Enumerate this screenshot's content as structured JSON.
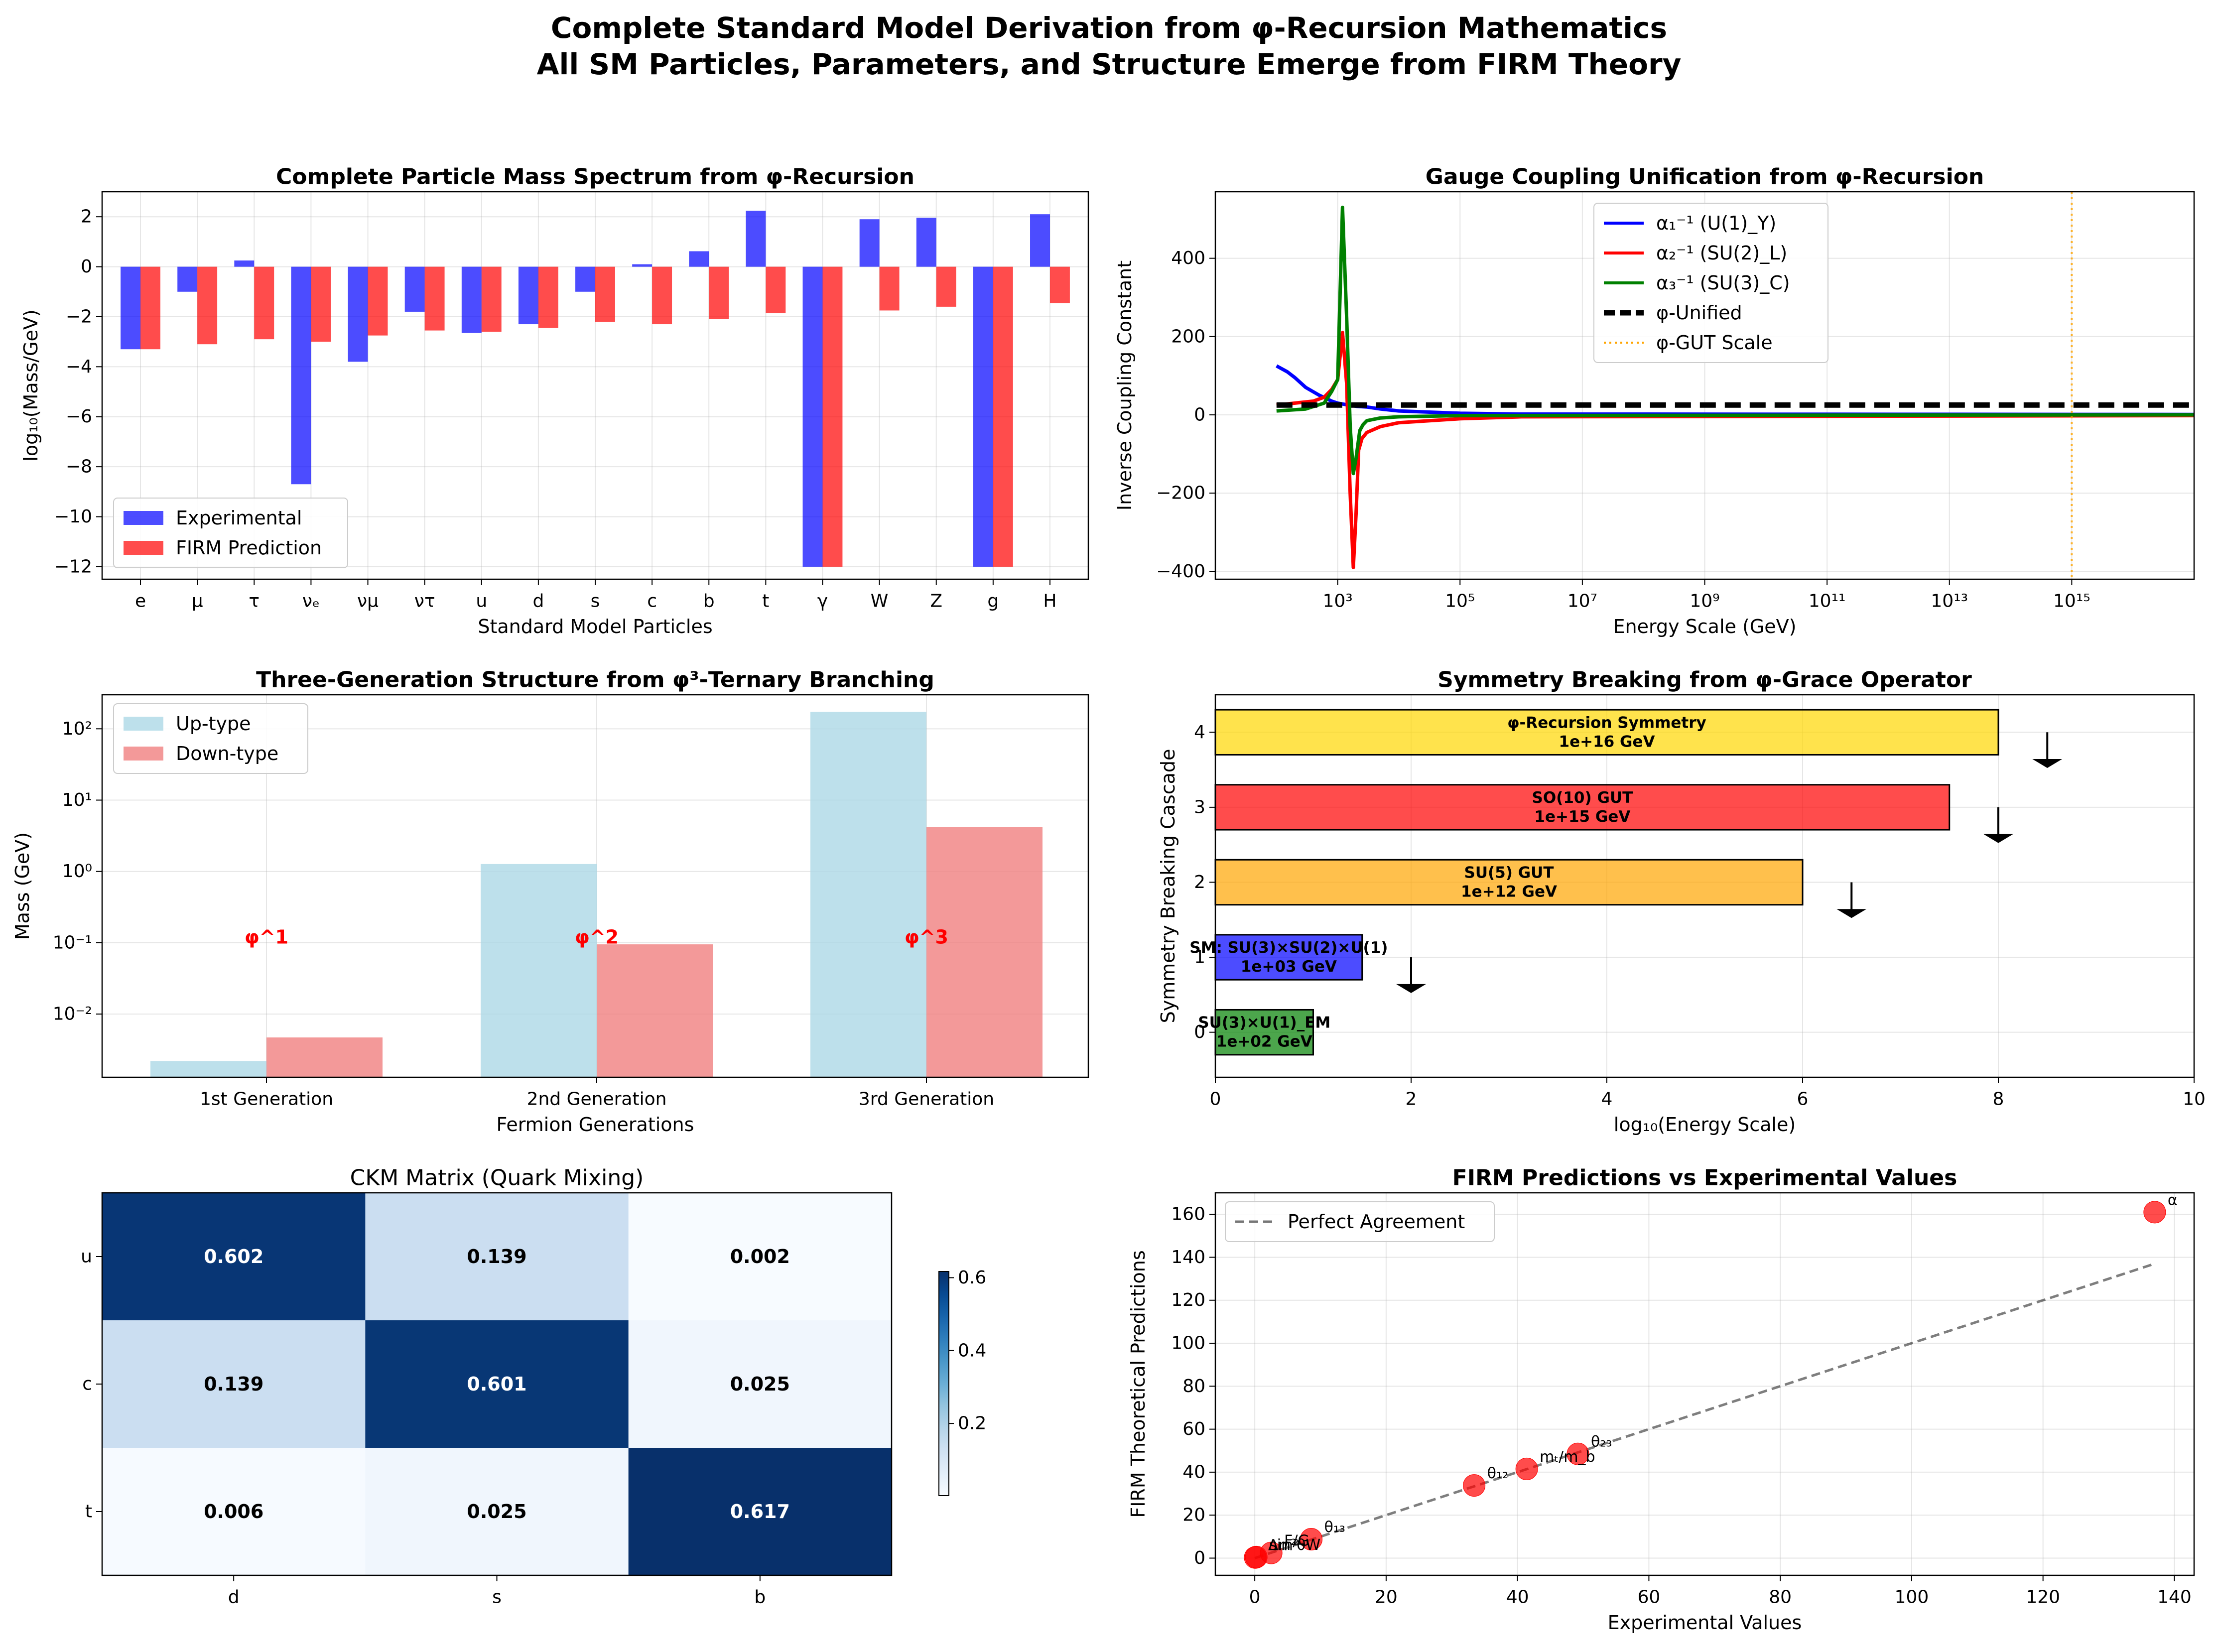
{
  "figure": {
    "title_line1": "Complete Standard Model Derivation from φ-Recursion Mathematics",
    "title_line2": "All SM Particles, Parameters, and Structure Emerge from FIRM Theory"
  },
  "chart_data": [
    {
      "id": "mass_spectrum",
      "type": "bar",
      "title": "Complete Particle Mass Spectrum from φ-Recursion",
      "xlabel": "Standard Model Particles",
      "ylabel": "log₁₀(Mass/GeV)",
      "ylim": [
        -12.5,
        3.0
      ],
      "yticks": [
        2,
        0,
        -2,
        -4,
        -6,
        -8,
        -10,
        -12
      ],
      "grid": true,
      "legend_position": "lower-left",
      "categories": [
        "e",
        "μ",
        "τ",
        "νₑ",
        "νμ",
        "ντ",
        "u",
        "d",
        "s",
        "c",
        "b",
        "t",
        "γ",
        "W",
        "Z",
        "g",
        "H"
      ],
      "series": [
        {
          "name": "Experimental",
          "color": "#0000ff",
          "values": [
            -3.3,
            -1.0,
            0.25,
            -8.7,
            -3.8,
            -1.8,
            -2.65,
            -2.3,
            -1.0,
            0.1,
            0.62,
            2.24,
            -12.0,
            1.9,
            1.96,
            -12.0,
            2.1
          ]
        },
        {
          "name": "FIRM Prediction",
          "color": "#ff0000",
          "values": [
            -3.3,
            -3.1,
            -2.9,
            -3.0,
            -2.75,
            -2.55,
            -2.6,
            -2.45,
            -2.2,
            -2.3,
            -2.1,
            -1.85,
            -12.0,
            -1.75,
            -1.6,
            -12.0,
            -1.45
          ]
        }
      ]
    },
    {
      "id": "gauge_coupling",
      "type": "line",
      "title": "Gauge Coupling Unification from φ-Recursion",
      "xlabel": "Energy Scale (GeV)",
      "ylabel": "Inverse Coupling Constant",
      "xscale": "log",
      "xlim": [
        10,
        1e+17
      ],
      "ylim": [
        -420,
        570
      ],
      "yticks": [
        -400,
        -200,
        0,
        200,
        400
      ],
      "xticks": [
        "10³",
        "10⁵",
        "10⁷",
        "10⁹",
        "10¹¹",
        "10¹³",
        "10¹⁵"
      ],
      "xtick_values": [
        1000.0,
        100000.0,
        10000000.0,
        1000000000.0,
        100000000000.0,
        10000000000000.0,
        1000000000000000.0
      ],
      "grid": true,
      "legend_position": "top-center",
      "series": [
        {
          "name": "α₁⁻¹ (U(1)_Y)",
          "color": "#0000ff",
          "style": "solid",
          "x": [
            100,
            150,
            200,
            300,
            500,
            800,
            1000,
            1500,
            2000,
            3000,
            5000,
            10000,
            100000.0,
            1000000.0,
            1e+17
          ],
          "y": [
            125,
            110,
            95,
            70,
            50,
            35,
            30,
            25,
            22,
            20,
            15,
            10,
            4,
            2,
            1
          ]
        },
        {
          "name": "α₂⁻¹ (SU(2)_L)",
          "color": "#ff0000",
          "style": "solid",
          "x": [
            100,
            200,
            400,
            600,
            800,
            1000,
            1200,
            1400,
            1600,
            1800,
            2000,
            2200,
            2500,
            3000,
            5000,
            10000.0,
            100000.0,
            1000000.0,
            1e+17
          ],
          "y": [
            25,
            30,
            35,
            45,
            65,
            90,
            210,
            80,
            -200,
            -390,
            -250,
            -90,
            -60,
            -45,
            -30,
            -20,
            -10,
            -5,
            -2
          ]
        },
        {
          "name": "α₃⁻¹ (SU(3)_C)",
          "color": "#008000",
          "style": "solid",
          "x": [
            100,
            300,
            600,
            800,
            1000,
            1200,
            1400,
            1600,
            1800,
            2000,
            2300,
            2600,
            3000,
            5000,
            10000.0,
            100000.0,
            1e+17
          ],
          "y": [
            10,
            15,
            30,
            60,
            90,
            530,
            250,
            -30,
            -150,
            -110,
            -40,
            -25,
            -15,
            -8,
            -5,
            -2,
            0
          ]
        },
        {
          "name": "φ-Unified",
          "color": "#000000",
          "style": "dashed",
          "x": [
            100,
            1e+17
          ],
          "y": [
            25,
            25
          ]
        },
        {
          "name": "φ-GUT Scale",
          "color": "#ffa500",
          "style": "dotted",
          "vline": 1000000000000000.0
        }
      ]
    },
    {
      "id": "generations",
      "type": "bar",
      "title": "Three-Generation Structure from φ³-Ternary Branching",
      "xlabel": "Fermion Generations",
      "ylabel": "Mass (GeV)",
      "yscale": "log",
      "ylim": [
        0.0013,
        300
      ],
      "yticks": [
        "10⁻²",
        "10⁻¹",
        "10⁰",
        "10¹",
        "10²"
      ],
      "ytick_values": [
        0.01,
        0.1,
        1,
        10,
        100
      ],
      "grid": true,
      "legend_position": "top-left",
      "categories": [
        "1st Generation",
        "2nd Generation",
        "3rd Generation"
      ],
      "series": [
        {
          "name": "Up-type",
          "color": "#add8e6",
          "values": [
            0.0022,
            1.27,
            173
          ]
        },
        {
          "name": "Down-type",
          "color": "#f08080",
          "values": [
            0.0047,
            0.095,
            4.18
          ]
        }
      ],
      "annotations": [
        {
          "text": "φ^1",
          "x": 0,
          "y": 0.12
        },
        {
          "text": "φ^2",
          "x": 1,
          "y": 0.12
        },
        {
          "text": "φ^3",
          "x": 2,
          "y": 0.12
        }
      ]
    },
    {
      "id": "symmetry_breaking",
      "type": "bar",
      "orientation": "horizontal",
      "title": "Symmetry Breaking from φ-Grace Operator",
      "xlabel": "log₁₀(Energy Scale)",
      "ylabel": "Symmetry Breaking Cascade",
      "xlim": [
        0,
        10
      ],
      "ylim": [
        -0.6,
        4.5
      ],
      "xticks": [
        0,
        2,
        4,
        6,
        8,
        10
      ],
      "yticks": [
        0,
        1,
        2,
        3,
        4
      ],
      "grid": true,
      "bars": [
        {
          "level": 4,
          "value": 8.0,
          "color": "#ffd700",
          "label": "φ-Recursion Symmetry",
          "energy": "1e+16 GeV"
        },
        {
          "level": 3,
          "value": 7.5,
          "color": "#ff0000",
          "label": "SO(10) GUT",
          "energy": "1e+15 GeV"
        },
        {
          "level": 2,
          "value": 6.0,
          "color": "#ffa500",
          "label": "SU(5) GUT",
          "energy": "1e+12 GeV"
        },
        {
          "level": 1,
          "value": 1.5,
          "color": "#0000ff",
          "label": "SM: SU(3)×SU(2)×U(1)",
          "energy": "1e+03 GeV"
        },
        {
          "level": 0,
          "value": 1.0,
          "color": "#008000",
          "label": "SU(3)×U(1)_EM",
          "energy": "1e+02 GeV"
        }
      ],
      "arrows": [
        {
          "x": 8.5,
          "from": 4.0,
          "to": 3.55
        },
        {
          "x": 8.0,
          "from": 3.0,
          "to": 2.55
        },
        {
          "x": 6.5,
          "from": 2.0,
          "to": 1.55
        },
        {
          "x": 2.0,
          "from": 1.0,
          "to": 0.55
        }
      ]
    },
    {
      "id": "ckm",
      "type": "heatmap",
      "title": "CKM Matrix (Quark Mixing)",
      "rows": [
        "u",
        "c",
        "t"
      ],
      "cols": [
        "d",
        "s",
        "b"
      ],
      "values": [
        [
          0.602,
          0.139,
          0.002
        ],
        [
          0.139,
          0.601,
          0.025
        ],
        [
          0.006,
          0.025,
          0.617
        ]
      ],
      "labels": [
        [
          "0.602",
          "0.139",
          "0.002"
        ],
        [
          "0.139",
          "0.601",
          "0.025"
        ],
        [
          "0.006",
          "0.025",
          "0.617"
        ]
      ],
      "colormap": "Blues",
      "vmin": 0.002,
      "vmax": 0.617,
      "colorbar_ticks": [
        "0.2",
        "0.4",
        "0.6"
      ],
      "colorbar_tick_values": [
        0.2,
        0.4,
        0.6
      ]
    },
    {
      "id": "predictions",
      "type": "scatter",
      "title": "FIRM Predictions vs Experimental Values",
      "xlabel": "Experimental Values",
      "ylabel": "FIRM Theoretical Predictions",
      "xlim": [
        -6,
        143
      ],
      "ylim": [
        -8,
        170
      ],
      "xticks": [
        0,
        20,
        40,
        60,
        80,
        100,
        120,
        140
      ],
      "yticks": [
        0,
        20,
        40,
        60,
        80,
        100,
        120,
        140,
        160
      ],
      "grid": true,
      "legend_position": "top-left",
      "reference_line": {
        "name": "Perfect Agreement",
        "x": [
          0,
          137
        ],
        "y": [
          0,
          137
        ]
      },
      "points": [
        {
          "label": "α",
          "x": 137.0,
          "y": 161.0
        },
        {
          "label": "θ₂₃",
          "x": 49.2,
          "y": 48.5
        },
        {
          "label": "mₜ/m_b",
          "x": 41.4,
          "y": 41.5
        },
        {
          "label": "θ₁₂",
          "x": 33.4,
          "y": 33.8
        },
        {
          "label": "θ₁₃",
          "x": 8.6,
          "y": 8.8
        },
        {
          "label": "F/G",
          "x": 2.5,
          "y": 2.4
        },
        {
          "label": "Δm²",
          "x": 0.07,
          "y": 0.3
        },
        {
          "label": "sin²θW",
          "x": 0.23,
          "y": 0.5
        }
      ]
    }
  ]
}
